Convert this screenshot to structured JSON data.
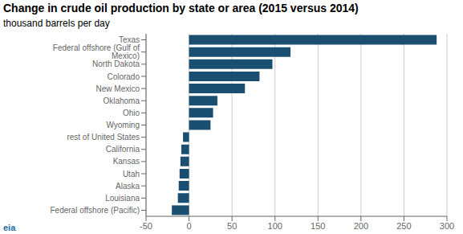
{
  "chart_data": {
    "type": "bar",
    "orientation": "horizontal",
    "title": "Change in crude oil production by state or area (2015 versus 2014)",
    "subtitle": "thousand barrels per day",
    "annotations": [
      {
        "text": "eia",
        "color": "#1a6ea8"
      }
    ],
    "categories": [
      "Federal offshore (Pacific)",
      "Louisiana",
      "Alaska",
      "Utah",
      "Kansas",
      "California",
      "rest of United States",
      "Wyoming",
      "Ohio",
      "Oklahoma",
      "New Mexico",
      "Colorado",
      "North Dakota",
      "Federal offshore (Gulf of Mexico)",
      "Texas"
    ],
    "values": [
      -20,
      -13,
      -12,
      -11,
      -10,
      -9,
      -7,
      25,
      28,
      33,
      65,
      82,
      97,
      118,
      288
    ],
    "color": "#1b4f72",
    "xlim": [
      -50,
      300
    ],
    "xticks": [
      -50,
      0,
      50,
      100,
      150,
      200,
      250,
      300
    ],
    "grid": true
  }
}
